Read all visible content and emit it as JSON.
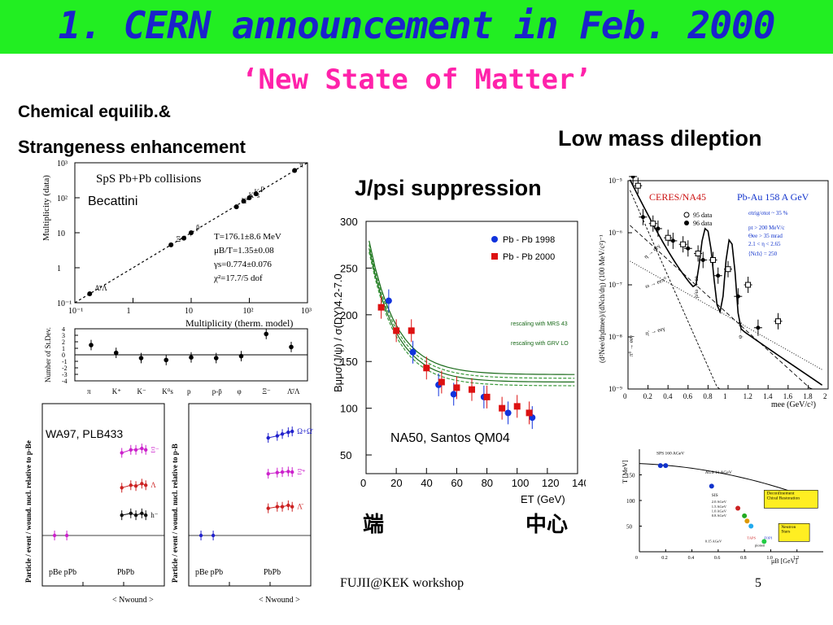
{
  "slide": {
    "title": "1. CERN announcement in Feb. 2000",
    "subtitle": "‘New State of Matter’",
    "footer_text": "FUJII@KEK workshop",
    "page_number": "5",
    "colors": {
      "title_bg": "#22ee22",
      "title_fg": "#1a22cc",
      "subtitle_fg": "#ff22aa"
    }
  },
  "sections": {
    "chem_line1": "Chemical equilib.&",
    "chem_line2": "Strangeness enhancement",
    "jpsi": "J/psi suppression",
    "dilepton": "Low mass dileption",
    "cjk_left": "端",
    "cjk_right": "中心"
  },
  "chart_data": [
    {
      "type": "scatter",
      "id": "thermal-fit",
      "title": "SpS  Pb+Pb collisions",
      "annotation": "Becattini",
      "xlabel": "Multiplicity (therm. model)",
      "ylabel": "Multiplicity (data)",
      "xscale": "log",
      "yscale": "log",
      "xlim": [
        0.1,
        1000
      ],
      "ylim": [
        0.1,
        1000
      ],
      "x_ticks": [
        "10⁻¹",
        "1",
        "10",
        "10²",
        "10³"
      ],
      "y_ticks": [
        "10⁻¹",
        "1",
        "10",
        "10²",
        "10³"
      ],
      "fit_lines": [
        "T=176.1±8.6 MeV",
        "μB/T=1.35±0.08",
        "γs=0.774±0.076",
        "χ²=17.7/5 dof"
      ],
      "points": [
        {
          "label": "Λ̄/Λ",
          "x": 0.18,
          "y": 0.18
        },
        {
          "label": "Ξ⁻",
          "x": 4.5,
          "y": 4.5
        },
        {
          "label": "φ",
          "x": 7.5,
          "y": 7.0
        },
        {
          "label": "p̄",
          "x": 10,
          "y": 10
        },
        {
          "label": "K⁻",
          "x": 60,
          "y": 55
        },
        {
          "label": "K⁰s",
          "x": 80,
          "y": 80
        },
        {
          "label": "K⁺",
          "x": 100,
          "y": 100
        },
        {
          "label": "p",
          "x": 130,
          "y": 130
        },
        {
          "label": "π",
          "x": 600,
          "y": 600
        }
      ]
    },
    {
      "type": "scatter",
      "id": "thermal-residuals",
      "ylabel": "Number of St.Dev.",
      "categories": [
        "π",
        "K⁺",
        "K⁻",
        "K⁰s",
        "p",
        "p-p̄",
        "φ",
        "Ξ⁻",
        "Λ̄/Λ"
      ],
      "values": [
        1.5,
        0.3,
        -0.5,
        -0.8,
        -0.4,
        -0.5,
        -0.2,
        3.2,
        1.2
      ],
      "ylim": [
        -4,
        4
      ],
      "y_ticks": [
        "4",
        "3",
        "2",
        "1",
        "0",
        "-1",
        "-2",
        "-3",
        "-4"
      ]
    },
    {
      "type": "line",
      "id": "wa97-enhancement",
      "annotation": "WA97, PLB433",
      "ylabel": "Particle / event / wound. nucl. relative to p-Be",
      "xlabel": "< Nwound >",
      "x_group_labels": [
        "pBe pPb",
        "PbPb"
      ],
      "yscale": "log",
      "series": [
        {
          "name": "Ξ⁻",
          "color": "#cc22cc",
          "x": [
            90,
            150,
            200,
            280,
            350
          ],
          "y": [
            11,
            12,
            12,
            12.5,
            12
          ]
        },
        {
          "name": "Λ",
          "color": "#cc2222",
          "x": [
            90,
            150,
            200,
            280,
            350
          ],
          "y": [
            4,
            4.3,
            4.2,
            4.5,
            4.3
          ]
        },
        {
          "name": "h⁻",
          "color": "#111111",
          "x": [
            90,
            150,
            200,
            280,
            350
          ],
          "y": [
            1.8,
            1.9,
            1.8,
            1.9,
            1.8
          ]
        },
        {
          "name": "pBe/pPb",
          "color": "#cc22cc",
          "x": [
            2,
            4
          ],
          "y": [
            1,
            1
          ]
        }
      ]
    },
    {
      "type": "line",
      "id": "wa97-antihyperons",
      "ylabel": "Particle / event / wound. nucl. relative to p-B",
      "xlabel": "< Nwound >",
      "x_group_labels": [
        "pBe pPb",
        "PbPb"
      ],
      "yscale": "log",
      "series": [
        {
          "name": "Ω+Ω̄",
          "color": "#2222cc",
          "x": [
            90,
            150,
            200,
            280,
            350
          ],
          "y": [
            17,
            18,
            19,
            20,
            20.5
          ]
        },
        {
          "name": "Ξ̄⁺",
          "color": "#cc22cc",
          "x": [
            90,
            150,
            200,
            280,
            350
          ],
          "y": [
            6,
            6.2,
            6.3,
            6.4,
            6.3
          ]
        },
        {
          "name": "Λ̄",
          "color": "#cc2222",
          "x": [
            90,
            150,
            200,
            280,
            350
          ],
          "y": [
            2.2,
            2.3,
            2.3,
            2.4,
            2.3
          ]
        },
        {
          "name": "pBe/pPb",
          "color": "#2222cc",
          "x": [
            2,
            4
          ],
          "y": [
            1,
            1
          ]
        }
      ]
    },
    {
      "type": "scatter",
      "id": "na50-jpsi",
      "annotation": "NA50, Santos QM04",
      "xlabel": "ET (GeV)",
      "ylabel": "Bμμσ(J/ψ) / σ(DY)4.2-7.0",
      "xlim": [
        0,
        140
      ],
      "ylim": [
        30,
        300
      ],
      "x_ticks": [
        "0",
        "20",
        "40",
        "60",
        "80",
        "100",
        "120",
        "140"
      ],
      "y_ticks": [
        "50",
        "100",
        "150",
        "200",
        "250",
        "300"
      ],
      "legend": [
        "Pb - Pb 1998",
        "Pb - Pb 2000"
      ],
      "band_labels": [
        "rescaling with MRS 43",
        "rescaling with GRV LO"
      ],
      "series": [
        {
          "name": "Pb - Pb 1998",
          "color": "#1133dd",
          "x": [
            15,
            31,
            48,
            58,
            78,
            94,
            110
          ],
          "y": [
            215,
            160,
            125,
            115,
            112,
            95,
            90
          ]
        },
        {
          "name": "Pb - Pb 2000",
          "color": "#dd1111",
          "x": [
            10,
            20,
            30,
            40,
            50,
            60,
            70,
            80,
            90,
            100,
            108
          ],
          "y": [
            208,
            183,
            183,
            143,
            128,
            122,
            120,
            112,
            100,
            102,
            95
          ]
        }
      ]
    },
    {
      "type": "line",
      "id": "ceres-dilepton",
      "title": "CERES/NA45",
      "subtitle": "Pb-Au 158 A GeV",
      "xlabel": "mee (GeV/c²)",
      "ylabel": "(d²Nee/dηdmee)/(dNch/dη) (100 MeV/c²)⁻¹",
      "xlim": [
        0,
        2
      ],
      "yscale": "log",
      "ylim": [
        1e-09,
        1e-05
      ],
      "x_ticks": [
        "0",
        "0.2",
        "0.4",
        "0.6",
        "0.8",
        "1",
        "1.2",
        "1.4",
        "1.6",
        "1.8",
        "2"
      ],
      "y_ticks": [
        "10⁻⁵",
        "10⁻⁶",
        "10⁻⁷",
        "10⁻⁸",
        "10⁻⁹"
      ],
      "legend": [
        "95 data",
        "96 data"
      ],
      "cuts": [
        "σtrig/σtot ~ 35 %",
        "pt > 200 MeV/c",
        "Θee > 35 mrad",
        "2.1 < η < 2.65",
        "⟨Nch⟩ = 250"
      ],
      "annotations": [
        "η → eeγ",
        "ω → eeπ⁰",
        "ρ/ω → ee",
        "η' → eeγ",
        "φ → ee",
        "π⁰ → eeγ"
      ],
      "series": [
        {
          "name": "95 data",
          "x": [
            0.1,
            0.25,
            0.4,
            0.55,
            0.7,
            0.85,
            1.0,
            1.2,
            1.5
          ],
          "y": [
            8e-06,
            1.5e-06,
            8e-07,
            6e-07,
            4e-07,
            3e-07,
            2e-07,
            1e-07,
            2e-08
          ]
        },
        {
          "name": "96 data",
          "x": [
            0.05,
            0.15,
            0.3,
            0.45,
            0.6,
            0.75,
            0.9,
            1.1,
            1.3
          ],
          "y": [
            1.2e-05,
            2e-06,
            1.2e-06,
            7e-07,
            5e-07,
            3e-07,
            1.5e-07,
            6e-08,
            1.5e-08
          ]
        }
      ]
    },
    {
      "type": "scatter",
      "id": "phase-diagram",
      "xlabel": "μB [GeV]",
      "ylabel": "T [MeV]",
      "xlim": [
        0,
        1.4
      ],
      "ylim": [
        0,
        200
      ],
      "x_ticks": [
        "0",
        "0.2",
        "0.4",
        "0.6",
        "0.8",
        "1.0",
        "1.2"
      ],
      "y_ticks": [
        "50",
        "100",
        "150"
      ],
      "labels": [
        "SPS 160 AGeV",
        "AGS 11 AGeV",
        "SIS",
        "2.0 AGeV",
        "1.5 AGeV",
        "1.0 AGeV",
        "0.8 AGeV",
        "0.15 AGeV",
        "TAPS",
        "FOPI",
        "pionen",
        "Deconfinement Chiral Restoration",
        "Neutron Stars"
      ],
      "points": [
        {
          "label": "SPS",
          "x": 0.16,
          "y": 168
        },
        {
          "label": "SPS",
          "x": 0.2,
          "y": 168
        },
        {
          "label": "AGS",
          "x": 0.55,
          "y": 128
        },
        {
          "label": "SIS",
          "x": 0.75,
          "y": 85
        },
        {
          "label": "SIS",
          "x": 0.8,
          "y": 70
        },
        {
          "label": "SIS",
          "x": 0.82,
          "y": 60
        },
        {
          "label": "SIS",
          "x": 0.85,
          "y": 50
        },
        {
          "label": "TAPS",
          "x": 0.95,
          "y": 20
        }
      ]
    }
  ]
}
